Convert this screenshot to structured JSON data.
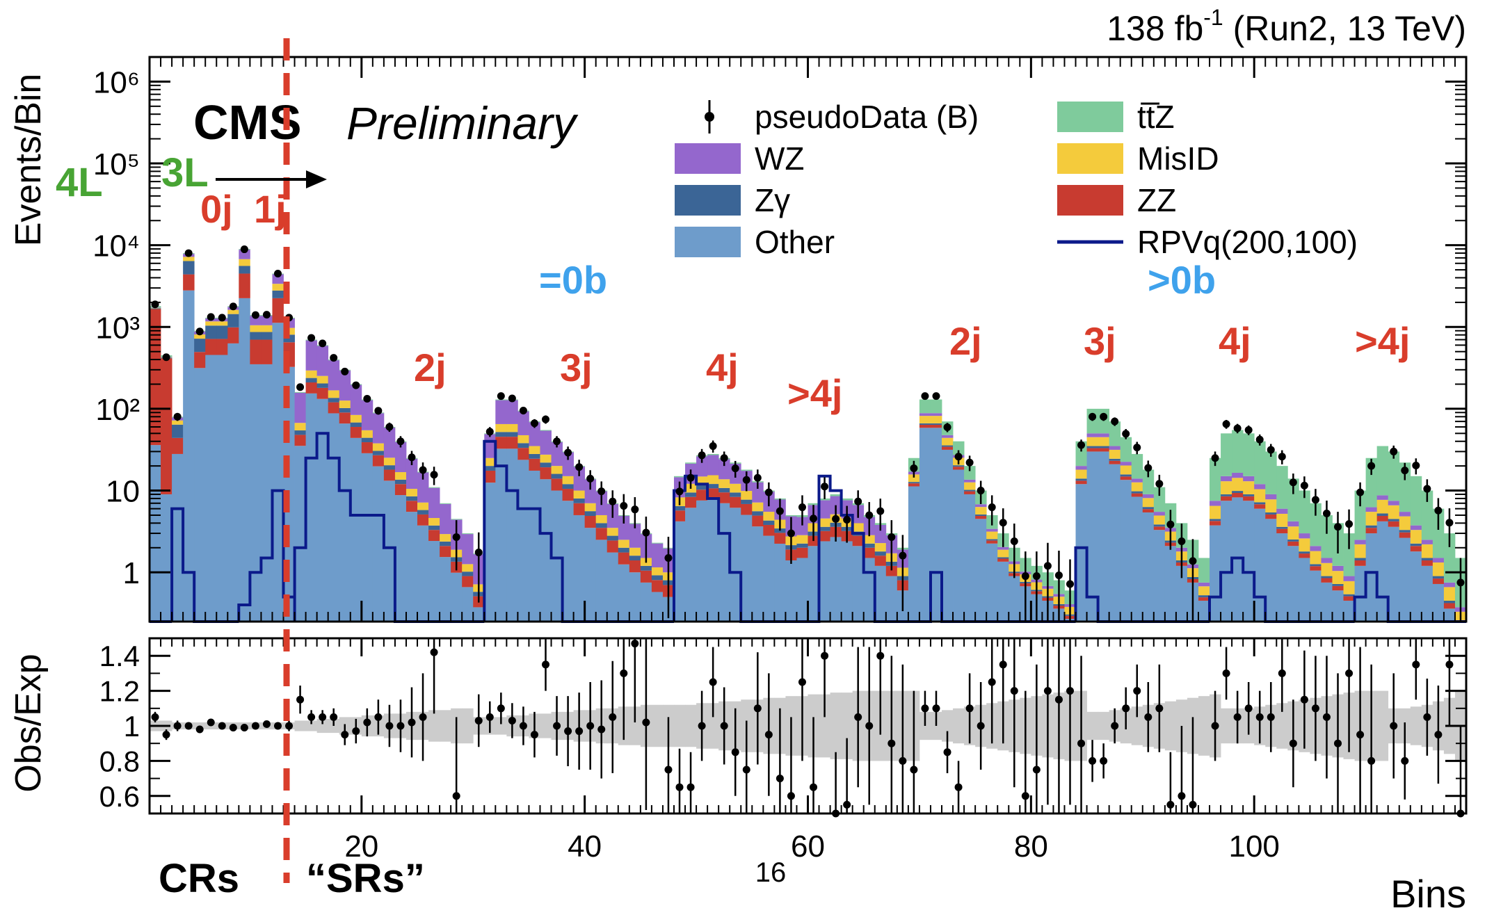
{
  "lumi_label": "138 fb⁻¹ (Run2, 13 TeV)",
  "experiment": "CMS",
  "status_label": "Preliminary",
  "page_number": "16",
  "annotations": {
    "lep_4l": "4L",
    "lep_3l": "3L",
    "cr_label": "CRs",
    "sr_label": "“SRs”",
    "bveto": "=0b",
    "btag": ">0b",
    "cr_jets": [
      "0j",
      "1j"
    ],
    "jets_0b": [
      "2j",
      "3j",
      "4j",
      ">4j"
    ],
    "jets_b": [
      "2j",
      "3j",
      "4j",
      ">4j"
    ]
  },
  "colors": {
    "WZ": "#9467cd",
    "Zgamma": "#3b6596",
    "Other": "#6e9ccb",
    "ttZ": "#7fcb9c",
    "MisID": "#f4cb3c",
    "ZZ": "#c83b30",
    "signal": "#0b1a8a",
    "annotation_red": "#d93d2b",
    "annotation_blue": "#3fa2ec",
    "annotation_green": "#48a434",
    "band": "#cccccc"
  },
  "chart_data": [
    {
      "type": "bar",
      "stacked": true,
      "log_y": true,
      "ylabel": "Events/Bin",
      "ylim": [
        0.25,
        2000000
      ],
      "xlim": [
        1,
        118
      ],
      "y_ticks": [
        {
          "value": 1000000,
          "label": "10⁶"
        },
        {
          "value": 100000,
          "label": "10⁵"
        },
        {
          "value": 10000,
          "label": "10⁴"
        },
        {
          "value": 1000,
          "label": "10³"
        },
        {
          "value": 100,
          "label": "10²"
        },
        {
          "value": 10,
          "label": "10"
        },
        {
          "value": 1,
          "label": "1"
        }
      ],
      "legend": [
        {
          "name": "pseudoData (B)",
          "kind": "marker"
        },
        {
          "name": "tt̅Z",
          "kind": "fill",
          "color": "#7fcb9c"
        },
        {
          "name": "WZ",
          "kind": "fill",
          "color": "#9467cd"
        },
        {
          "name": "MisID",
          "kind": "fill",
          "color": "#f4cb3c"
        },
        {
          "name": "Zγ",
          "kind": "fill",
          "color": "#3b6596"
        },
        {
          "name": "ZZ",
          "kind": "fill",
          "color": "#c83b30"
        },
        {
          "name": "Other",
          "kind": "fill",
          "color": "#6e9ccb"
        },
        {
          "name": "RPVq(200,100)",
          "kind": "line",
          "color": "#0b1a8a"
        }
      ],
      "regions": [
        {
          "name": "4L",
          "bins": [
            1,
            2
          ],
          "total": [
            1800,
            450
          ],
          "other": 0.02,
          "ZZ": 0.9,
          "Zg": 0.02,
          "MisID": 0.01,
          "WZ": 0.01,
          "ttZ": 0.04,
          "signal": [
            0.1,
            0.1
          ]
        },
        {
          "name": "0j",
          "bins": [
            3,
            8
          ],
          "total": [
            80,
            8000,
            900,
            1300,
            1300,
            1800
          ],
          "other": 0.35,
          "ZZ": 0.2,
          "Zg": 0.25,
          "MisID": 0.1,
          "WZ": 0.08,
          "ttZ": 0.02,
          "signal": [
            6,
            1,
            0.25,
            0.25,
            0.25,
            0.25
          ]
        },
        {
          "name": "1j",
          "bins": [
            9,
            13
          ],
          "total": [
            9000,
            1400,
            1400,
            4500,
            1300
          ],
          "other": 0.25,
          "ZZ": 0.25,
          "Zg": 0.12,
          "MisID": 0.13,
          "WZ": 0.23,
          "ttZ": 0.02,
          "signal": [
            0.4,
            1,
            1.5,
            10,
            0.5
          ]
        },
        {
          "name": "0b 2j",
          "bins": [
            14,
            30
          ],
          "total": [
            160,
            700,
            600,
            400,
            300,
            200,
            130,
            90,
            60,
            40,
            25,
            17,
            11,
            7,
            4.5,
            3,
            1.7
          ],
          "other": 0.22,
          "ZZ": 0.08,
          "Zg": 0.04,
          "MisID": 0.08,
          "WZ": 0.56,
          "ttZ": 0.02,
          "signal": [
            2,
            25,
            50,
            25,
            10,
            5,
            5,
            5,
            2,
            0.25,
            0.25,
            0.25,
            0.25,
            0.25,
            0.25,
            0.25,
            0.25
          ]
        },
        {
          "name": "0b 3j",
          "bins": [
            31,
            47
          ],
          "total": [
            50,
            130,
            130,
            95,
            70,
            55,
            40,
            30,
            20,
            14,
            10,
            7,
            5,
            4,
            3,
            2.3,
            2
          ],
          "other": 0.25,
          "ZZ": 0.1,
          "Zg": 0.05,
          "MisID": 0.1,
          "WZ": 0.48,
          "ttZ": 0.02,
          "signal": [
            40,
            20,
            10,
            6,
            6,
            3,
            1.5,
            0.25,
            0.25,
            0.25,
            0.25,
            0.25,
            0.25,
            0.25,
            0.25,
            0.25,
            0.25
          ]
        },
        {
          "name": "0b 4j",
          "bins": [
            48,
            58
          ],
          "total": [
            15,
            22,
            27,
            28,
            25,
            22,
            18,
            13,
            10,
            8,
            5
          ],
          "other": 0.28,
          "ZZ": 0.1,
          "Zg": 0.05,
          "MisID": 0.12,
          "WZ": 0.42,
          "ttZ": 0.03,
          "signal": [
            10,
            15,
            12,
            8,
            3,
            1,
            0.25,
            0.25,
            0.25,
            0.25,
            0.25
          ]
        },
        {
          "name": "0b >4j",
          "bins": [
            59,
            68
          ],
          "total": [
            5,
            7,
            8,
            9,
            8,
            7,
            5,
            4,
            3,
            2
          ],
          "other": 0.3,
          "ZZ": 0.1,
          "Zg": 0.05,
          "MisID": 0.12,
          "WZ": 0.38,
          "ttZ": 0.05,
          "signal": [
            0.25,
            0.25,
            15,
            10,
            5,
            3,
            1,
            0.25,
            0.25,
            0.25
          ]
        },
        {
          "name": ">0b 2j",
          "bins": [
            69,
            83
          ],
          "total": [
            25,
            130,
            130,
            70,
            40,
            20,
            10,
            5,
            3,
            2,
            1.5,
            1.2,
            1,
            0.8,
            0.6
          ],
          "other": 0.45,
          "ZZ": 0.04,
          "Zg": 0.02,
          "MisID": 0.12,
          "WZ": 0.05,
          "ttZ": 0.32,
          "signal": [
            0.25,
            0.25,
            1,
            0.25,
            0.25,
            0.25,
            0.25,
            0.25,
            0.25,
            0.25,
            0.25,
            0.25,
            0.25,
            0.25,
            0.25
          ]
        },
        {
          "name": ">0b 3j",
          "bins": [
            84,
            95
          ],
          "total": [
            40,
            100,
            100,
            70,
            45,
            28,
            18,
            11,
            7,
            4,
            2.5,
            1.5
          ],
          "other": 0.3,
          "ZZ": 0.03,
          "Zg": 0.02,
          "MisID": 0.1,
          "WZ": 0.05,
          "ttZ": 0.5,
          "signal": [
            2,
            0.5,
            0.25,
            0.25,
            0.25,
            0.25,
            0.25,
            0.25,
            0.25,
            0.25,
            0.25,
            0.25
          ]
        },
        {
          "name": ">0b 4j",
          "bins": [
            96,
            108
          ],
          "total": [
            25,
            50,
            55,
            50,
            40,
            30,
            20,
            14,
            10,
            7,
            5,
            4,
            3
          ],
          "other": 0.15,
          "ZZ": 0.02,
          "Zg": 0.01,
          "MisID": 0.08,
          "WZ": 0.04,
          "ttZ": 0.7,
          "signal": [
            0.5,
            1,
            1.5,
            1,
            0.5,
            0.25,
            0.25,
            0.25,
            0.25,
            0.25,
            0.25,
            0.25,
            0.25
          ]
        },
        {
          "name": ">0b >4j",
          "bins": [
            109,
            118
          ],
          "total": [
            10,
            25,
            35,
            30,
            22,
            15,
            10,
            6,
            3,
            1.5
          ],
          "other": 0.12,
          "ZZ": 0.02,
          "Zg": 0.01,
          "MisID": 0.07,
          "WZ": 0.03,
          "ttZ": 0.75,
          "signal": [
            0.5,
            1,
            0.5,
            0.25,
            0.25,
            0.25,
            0.25,
            0.25,
            0.25,
            0.25
          ]
        }
      ]
    },
    {
      "type": "scatter",
      "ylabel": "Obs/Exp",
      "xlabel": "Bins",
      "ylim": [
        0.5,
        1.5
      ],
      "xlim": [
        1,
        118
      ],
      "x_ticks": [
        20,
        40,
        60,
        80,
        100
      ],
      "y_ticks": [
        {
          "value": 0.6,
          "label": "0.6"
        },
        {
          "value": 0.8,
          "label": "0.8"
        },
        {
          "value": 1,
          "label": "1"
        },
        {
          "value": 1.2,
          "label": "1.2"
        },
        {
          "value": 1.4,
          "label": "1.4"
        }
      ],
      "reference": 1,
      "ratio": [
        1.05,
        0.95,
        1,
        1,
        0.98,
        1.02,
        1,
        0.99,
        0.99,
        1,
        1.01,
        1,
        1,
        1.15,
        1.05,
        1.05,
        1.05,
        0.95,
        0.97,
        1.02,
        1.05,
        1,
        1,
        1.02,
        1.05,
        1.42,
        null,
        0.6,
        null,
        1.03,
        1.05,
        1.1,
        1.03,
        1,
        0.95,
        1.35,
        1,
        0.97,
        0.97,
        1,
        0.98,
        1.05,
        1.3,
        1.47,
        1.02,
        null,
        0.75,
        0.65,
        0.65,
        1,
        1.25,
        1,
        0.85,
        0.75,
        1.1,
        0.95,
        0.7,
        0.6,
        1.25,
        0.65,
        1.4,
        0.5,
        0.55,
        1.05,
        1,
        1.4,
        0.9,
        0.8,
        0.75,
        1.1,
        1.1,
        0.85,
        0.65,
        1.1,
        1,
        1.25,
        1.35,
        1.2,
        0.6,
        0.75,
        1.2,
        1.15,
        1.2,
        0.9,
        0.8,
        0.8,
        1,
        1.1,
        1.2,
        1.05,
        1.1,
        0.55,
        0.6,
        0.55,
        null,
        1,
        1.3,
        1.05,
        1.1,
        1.05,
        1.05,
        1.3,
        0.9,
        1.15,
        1.1,
        1.05,
        0.9,
        1.3,
        0.95,
        0.8,
        null,
        1,
        0.8,
        1.35,
        1.05,
        0.95,
        1.35,
        0.5
      ],
      "ratio_err": [
        0.03,
        0.03,
        0.03,
        0.02,
        0.02,
        0.02,
        0.02,
        0.02,
        0.02,
        0.02,
        0.02,
        0.02,
        0.03,
        0.08,
        0.04,
        0.04,
        0.05,
        0.06,
        0.07,
        0.08,
        0.1,
        0.12,
        0.15,
        0.2,
        0.25,
        0.35,
        null,
        0.45,
        null,
        0.15,
        0.09,
        0.09,
        0.1,
        0.11,
        0.13,
        0.15,
        0.17,
        0.2,
        0.22,
        0.25,
        0.28,
        0.32,
        0.38,
        0.45,
        0.5,
        null,
        0.3,
        0.22,
        0.2,
        0.2,
        0.2,
        0.22,
        0.25,
        0.28,
        0.32,
        0.35,
        0.4,
        0.45,
        0.45,
        0.4,
        0.35,
        0.35,
        0.38,
        0.4,
        0.45,
        0.45,
        0.5,
        0.55,
        0.45,
        0.1,
        0.1,
        0.12,
        0.15,
        0.2,
        0.25,
        0.35,
        0.45,
        0.55,
        0.6,
        0.6,
        0.65,
        0.65,
        0.65,
        0.5,
        0.12,
        0.1,
        0.1,
        0.12,
        0.15,
        0.2,
        0.25,
        0.3,
        0.4,
        0.5,
        null,
        0.2,
        0.15,
        0.15,
        0.15,
        0.15,
        0.2,
        0.22,
        0.25,
        0.28,
        0.3,
        0.35,
        0.4,
        0.45,
        0.5,
        0.55,
        null,
        0.3,
        0.22,
        0.2,
        0.22,
        0.28,
        0.35,
        0.5
      ],
      "band_halfwidth": [
        0.03,
        0.03,
        0.02,
        0.02,
        0.02,
        0.02,
        0.02,
        0.02,
        0.02,
        0.02,
        0.02,
        0.02,
        0.02,
        0.03,
        0.03,
        0.04,
        0.04,
        0.05,
        0.05,
        0.06,
        0.06,
        0.07,
        0.07,
        0.08,
        0.08,
        0.09,
        0.09,
        0.1,
        0.1,
        0.05,
        0.05,
        0.05,
        0.06,
        0.06,
        0.07,
        0.07,
        0.08,
        0.08,
        0.09,
        0.09,
        0.1,
        0.1,
        0.11,
        0.11,
        0.12,
        0.12,
        0.12,
        0.12,
        0.12,
        0.13,
        0.13,
        0.14,
        0.14,
        0.15,
        0.15,
        0.16,
        0.16,
        0.17,
        0.17,
        0.18,
        0.18,
        0.19,
        0.19,
        0.2,
        0.2,
        0.2,
        0.2,
        0.2,
        0.2,
        0.08,
        0.08,
        0.09,
        0.1,
        0.11,
        0.12,
        0.13,
        0.14,
        0.15,
        0.16,
        0.17,
        0.18,
        0.19,
        0.2,
        0.2,
        0.08,
        0.08,
        0.09,
        0.1,
        0.11,
        0.12,
        0.13,
        0.14,
        0.15,
        0.16,
        0.17,
        0.18,
        0.1,
        0.1,
        0.1,
        0.11,
        0.12,
        0.13,
        0.14,
        0.15,
        0.16,
        0.17,
        0.18,
        0.19,
        0.2,
        0.2,
        0.2,
        0.1,
        0.1,
        0.11,
        0.12,
        0.14,
        0.16,
        0.2
      ]
    }
  ]
}
